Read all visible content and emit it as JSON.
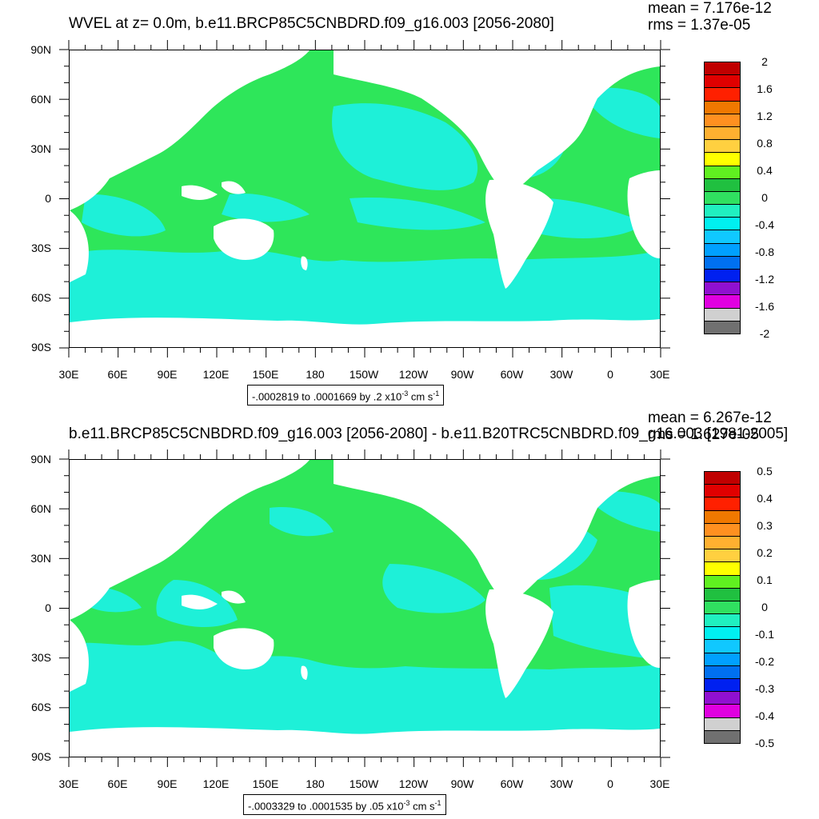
{
  "colors": {
    "ocean_green": "#2ee65a",
    "ocean_cyan": "#1ef0d8",
    "land": "#ffffff"
  },
  "axes": {
    "lat_labels": [
      "90N",
      "60N",
      "30N",
      "0",
      "30S",
      "60S",
      "90S"
    ],
    "lon_labels": [
      "30E",
      "60E",
      "90E",
      "120E",
      "150E",
      "180",
      "150W",
      "120W",
      "90W",
      "60W",
      "30W",
      "0",
      "30E"
    ]
  },
  "panels": [
    {
      "title": "WVEL at z=   0.0m, b.e11.BRCP85C5CNBDRD.f09_g16.003 [2056-2080]",
      "mean": "mean = 7.176e-12",
      "rms": "rms = 1.37e-05",
      "range_text": "-.0002819 to .0001669 by .2 x10",
      "range_exp": "-3",
      "range_unit": " cm s",
      "range_unit_exp": "-1",
      "colorbar": {
        "labels": [
          "2",
          "1.6",
          "1.2",
          "0.8",
          "0.4",
          "0",
          "-0.4",
          "-0.8",
          "-1.2",
          "-1.6",
          "-2"
        ],
        "colors": [
          "#c00000",
          "#e00000",
          "#ff2000",
          "#f07800",
          "#ff9020",
          "#ffb030",
          "#ffd040",
          "#ffff00",
          "#60f020",
          "#20c040",
          "#30e060",
          "#20f0c0",
          "#00f0f0",
          "#10c8ff",
          "#00a0ff",
          "#0070f0",
          "#0020f0",
          "#9010d0",
          "#e000e0",
          "#d0d0d0",
          "#707070"
        ]
      },
      "map_variant": "a"
    },
    {
      "title": "b.e11.BRCP85C5CNBDRD.f09_g16.003 [2056-2080] - b.e11.B20TRC5CNBDRD.f09_g16.003 [1981-2005]",
      "mean": "mean = 6.267e-12",
      "rms": "rms = 1.627e-05",
      "range_text": "-.0003329 to .0001535 by .05 x10",
      "range_exp": "-3",
      "range_unit": " cm s",
      "range_unit_exp": "-1",
      "colorbar": {
        "labels": [
          "0.5",
          "0.4",
          "0.3",
          "0.2",
          "0.1",
          "0",
          "-0.1",
          "-0.2",
          "-0.3",
          "-0.4",
          "-0.5"
        ],
        "colors": [
          "#c00000",
          "#e00000",
          "#ff2000",
          "#f07800",
          "#ff9020",
          "#ffb030",
          "#ffd040",
          "#ffff00",
          "#60f020",
          "#20c040",
          "#30e060",
          "#20f0c0",
          "#00f0f0",
          "#10c8ff",
          "#00a0ff",
          "#0070f0",
          "#0020f0",
          "#9010d0",
          "#e000e0",
          "#d0d0d0",
          "#707070"
        ]
      },
      "map_variant": "b"
    }
  ]
}
